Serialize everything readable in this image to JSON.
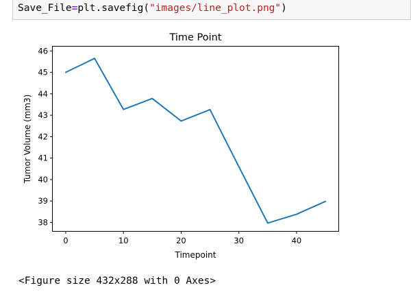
{
  "code_cell": {
    "var_name": "Save_File",
    "operator": "=",
    "call": "plt.savefig(",
    "argument": "\"images/line_plot.png\"",
    "close": ")"
  },
  "output": {
    "text": "<Figure size 432x288 with 0 Axes>"
  },
  "colors": {
    "line": "#1f77b4",
    "axes": "#000000",
    "code_bg": "#f7f7f7",
    "string": "#ba2121",
    "operator": "#aa22ff"
  },
  "chart_data": {
    "type": "line",
    "title": "Time Point",
    "xlabel": "Timepoint",
    "ylabel": "Tumor Volume (mm3)",
    "xlim": [
      -2.25,
      47.25
    ],
    "ylim": [
      37.6,
      46.2
    ],
    "grid": false,
    "x_ticks": [
      0,
      10,
      20,
      30,
      40
    ],
    "y_ticks": [
      38,
      39,
      40,
      41,
      42,
      43,
      44,
      45,
      46
    ],
    "series": [
      {
        "x": [
          0,
          5,
          10,
          15,
          20,
          25,
          30,
          35,
          40,
          45
        ],
        "values": [
          45.0,
          45.65,
          43.27,
          43.78,
          42.73,
          43.26,
          40.6,
          37.97,
          38.38,
          38.98
        ]
      }
    ]
  }
}
